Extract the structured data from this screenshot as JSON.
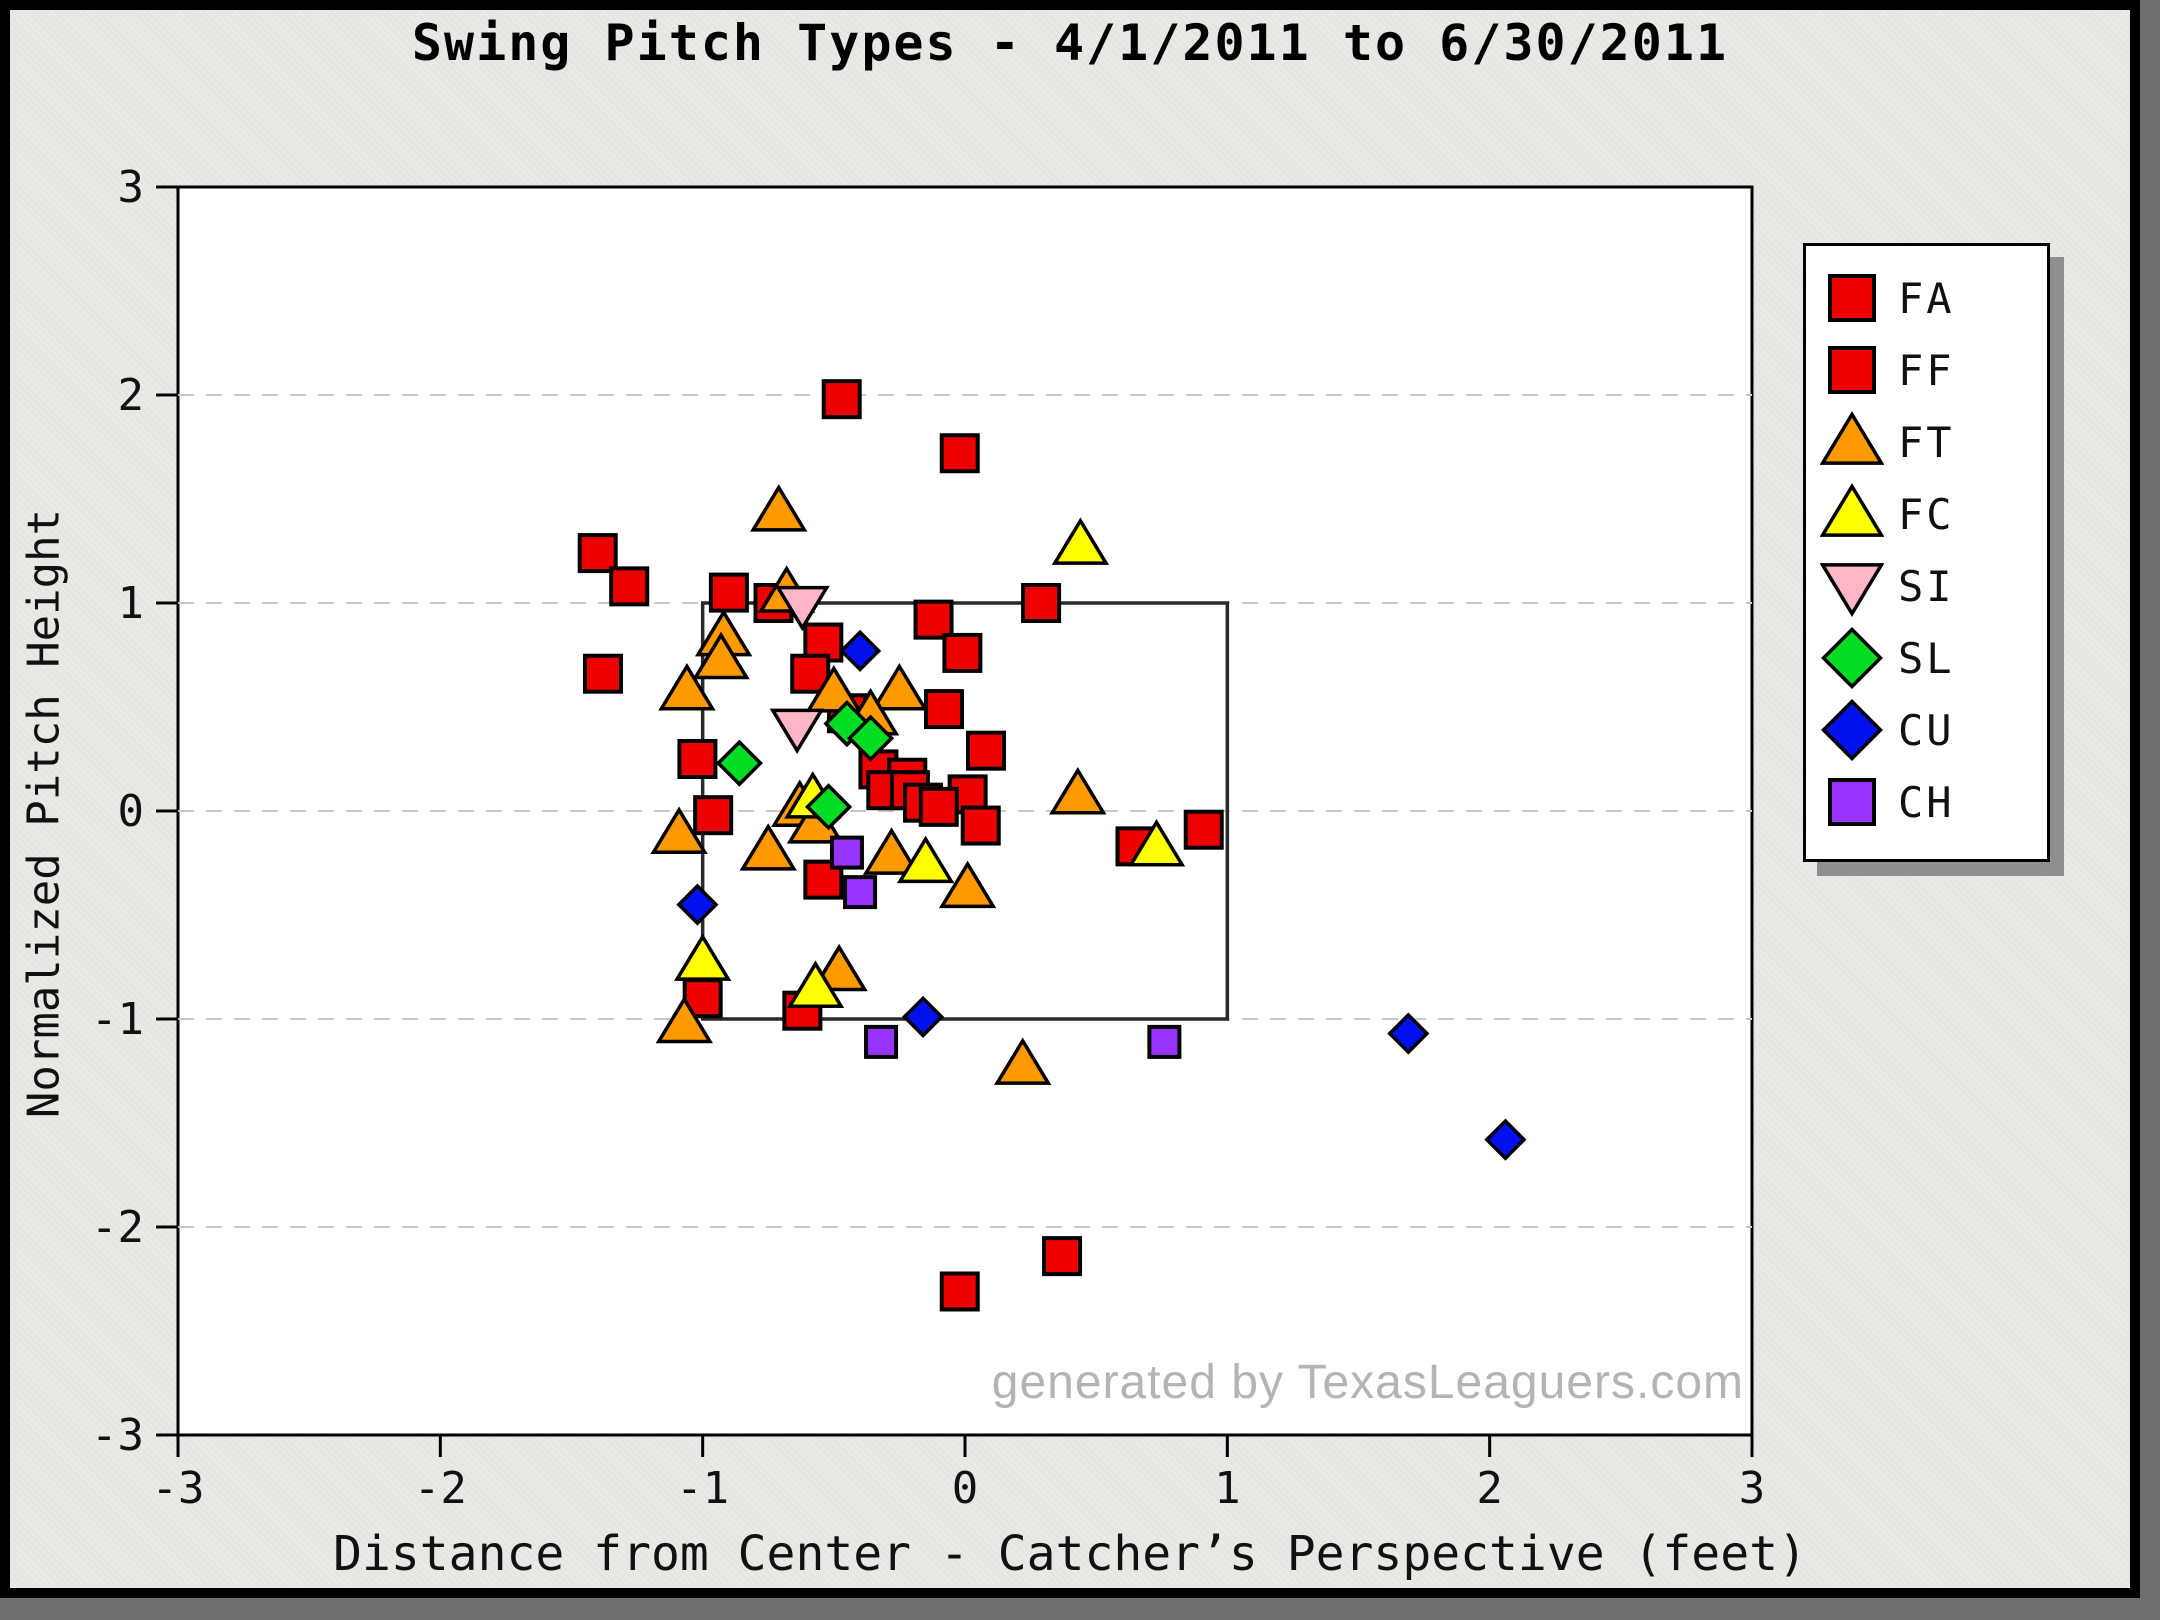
{
  "title": "Swing Pitch Types - 4/1/2011 to 6/30/2011",
  "watermark": "generated by TexasLeaguers.com",
  "axes": {
    "x_label": "Distance from Center - Catcher’s Perspective (feet)",
    "y_label": "Normalized Pitch Height",
    "x_ticks": [
      -3,
      -2,
      -1,
      0,
      1,
      2,
      3
    ],
    "y_ticks": [
      3,
      2,
      1,
      0,
      -1,
      -2,
      -3
    ]
  },
  "colors": {
    "canvas_bg": "#e9e9e6",
    "outer_shadow": "#6e6e6e",
    "frame": "#000000",
    "plot_bg": "#ffffff",
    "plot_border": "#000000",
    "gridline": "#c9c9c9",
    "strike_zone": "#2a2a2a",
    "watermark": "#b4b4b4",
    "legend_bg": "#fffffd",
    "legend_shadow": "#8f8f8f",
    "red": "#ee0000",
    "orange": "#ff9900",
    "yellow": "#ffff00",
    "pink": "#ffb7c8",
    "green": "#00dd22",
    "blue": "#0011ee",
    "purple": "#9933ff"
  },
  "legend": {
    "items": [
      {
        "label": "FA",
        "marker": "square",
        "color": "#ee0000"
      },
      {
        "label": "FF",
        "marker": "square",
        "color": "#ee0000"
      },
      {
        "label": "FT",
        "marker": "triangle-up",
        "color": "#ff9900"
      },
      {
        "label": "FC",
        "marker": "triangle-up",
        "color": "#ffff00"
      },
      {
        "label": "SI",
        "marker": "triangle-down",
        "color": "#ffb7c8"
      },
      {
        "label": "SL",
        "marker": "diamond",
        "color": "#00dd22"
      },
      {
        "label": "CU",
        "marker": "diamond",
        "color": "#0011ee"
      },
      {
        "label": "CH",
        "marker": "square",
        "color": "#9933ff"
      }
    ]
  },
  "chart_data": {
    "type": "scatter",
    "title": "Swing Pitch Types - 4/1/2011 to 6/30/2011",
    "xlabel": "Distance from Center - Catcher's Perspective (feet)",
    "ylabel": "Normalized Pitch Height",
    "xlim": [
      -3,
      3
    ],
    "ylim": [
      -3,
      3
    ],
    "grid_y": [
      2,
      1,
      0,
      -1,
      -2
    ],
    "grid_style": "horizontal dashed light-gray lines at integer y values; no vertical gridlines",
    "legend_position": "upper right, outside plot",
    "strike_zone": {
      "x": [
        -1,
        1
      ],
      "y": [
        -1,
        1
      ]
    },
    "series": [
      {
        "name": "FA",
        "marker": "square",
        "color": "#ee0000",
        "size": 36,
        "points": []
      },
      {
        "name": "FF",
        "marker": "square",
        "color": "#ee0000",
        "size": 36,
        "points": [
          [
            -0.47,
            1.98
          ],
          [
            -0.02,
            1.72
          ],
          [
            -1.4,
            1.24
          ],
          [
            -1.28,
            1.08
          ],
          [
            -0.9,
            1.05
          ],
          [
            -0.73,
            1.0
          ],
          [
            0.29,
            1.0
          ],
          [
            -0.12,
            0.92
          ],
          [
            -0.54,
            0.81
          ],
          [
            -0.01,
            0.76
          ],
          [
            -0.59,
            0.66
          ],
          [
            -1.38,
            0.66
          ],
          [
            -0.45,
            0.47
          ],
          [
            -0.08,
            0.49
          ],
          [
            0.08,
            0.29
          ],
          [
            -1.02,
            0.25
          ],
          [
            -0.33,
            0.2
          ],
          [
            -0.22,
            0.16
          ],
          [
            -0.3,
            0.1
          ],
          [
            -0.21,
            0.1
          ],
          [
            0.01,
            0.08
          ],
          [
            -0.16,
            0.04
          ],
          [
            -0.1,
            0.02
          ],
          [
            -0.96,
            -0.02
          ],
          [
            0.06,
            -0.07
          ],
          [
            0.91,
            -0.09
          ],
          [
            0.65,
            -0.17
          ],
          [
            -0.54,
            -0.33
          ],
          [
            -1.0,
            -0.9
          ],
          [
            -0.62,
            -0.96
          ],
          [
            -0.02,
            -2.31
          ],
          [
            0.37,
            -2.14
          ]
        ]
      },
      {
        "name": "FT",
        "marker": "triangle-up",
        "color": "#ff9900",
        "size": 40,
        "points": [
          [
            -0.71,
            1.44
          ],
          [
            -0.68,
            1.05
          ],
          [
            -0.92,
            0.84
          ],
          [
            -0.93,
            0.73
          ],
          [
            -1.06,
            0.58
          ],
          [
            -0.5,
            0.57
          ],
          [
            -0.25,
            0.58
          ],
          [
            -0.36,
            0.46
          ],
          [
            0.43,
            0.08
          ],
          [
            -0.63,
            0.02
          ],
          [
            -0.57,
            -0.06
          ],
          [
            -1.09,
            -0.11
          ],
          [
            -0.75,
            -0.19
          ],
          [
            -0.28,
            -0.21
          ],
          [
            0.01,
            -0.37
          ],
          [
            -0.48,
            -0.77
          ],
          [
            -1.07,
            -1.02
          ],
          [
            0.22,
            -1.22
          ]
        ]
      },
      {
        "name": "FC",
        "marker": "triangle-up",
        "color": "#ffff00",
        "size": 40,
        "points": [
          [
            0.44,
            1.28
          ],
          [
            -0.58,
            0.06
          ],
          [
            -0.15,
            -0.25
          ],
          [
            -1.0,
            -0.72
          ],
          [
            -0.57,
            -0.85
          ],
          [
            0.73,
            -0.17
          ]
        ]
      },
      {
        "name": "SI",
        "marker": "triangle-down",
        "color": "#ffb7c8",
        "size": 38,
        "points": [
          [
            -0.62,
            0.99
          ],
          [
            -0.64,
            0.4
          ]
        ]
      },
      {
        "name": "SL",
        "marker": "diamond",
        "color": "#00dd22",
        "size": 34,
        "points": [
          [
            -0.45,
            0.42
          ],
          [
            -0.36,
            0.35
          ],
          [
            -0.86,
            0.23
          ],
          [
            -0.52,
            0.02
          ]
        ]
      },
      {
        "name": "CU",
        "marker": "diamond",
        "color": "#0011ee",
        "size": 30,
        "points": [
          [
            -0.4,
            0.77
          ],
          [
            -1.02,
            -0.45
          ],
          [
            -0.16,
            -0.99
          ],
          [
            1.69,
            -1.07
          ],
          [
            2.06,
            -1.58
          ]
        ]
      },
      {
        "name": "CH",
        "marker": "square",
        "color": "#9933ff",
        "size": 30,
        "points": [
          [
            -0.45,
            -0.2
          ],
          [
            -0.4,
            -0.39
          ],
          [
            -0.32,
            -1.11
          ],
          [
            0.76,
            -1.11
          ]
        ]
      }
    ]
  }
}
